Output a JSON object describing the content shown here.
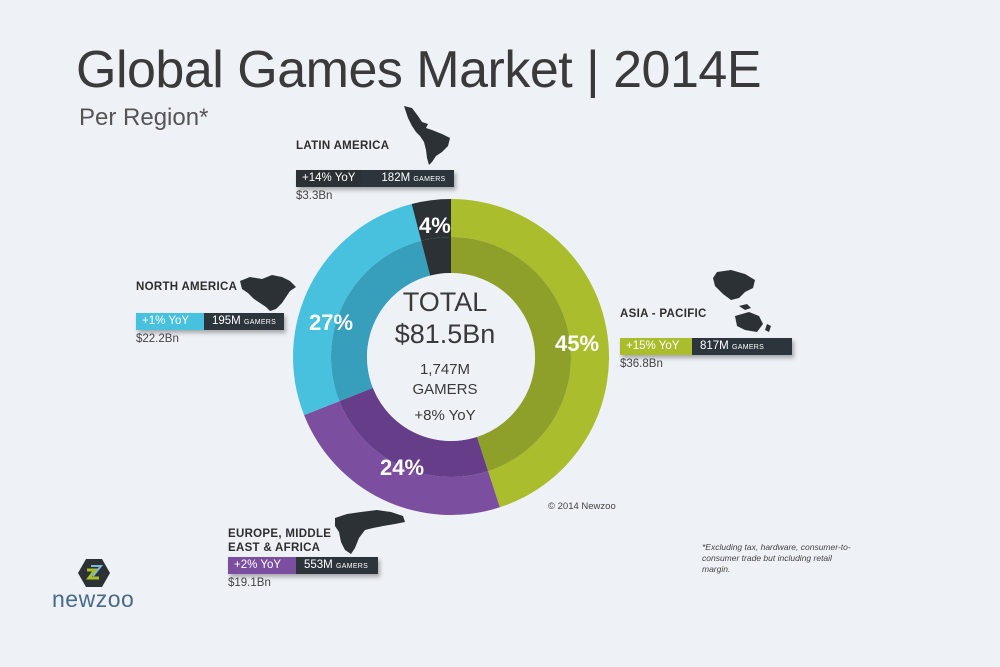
{
  "header": {
    "title": "Global Games Market | 2014E",
    "subtitle": "Per Region*"
  },
  "center": {
    "label": "TOTAL",
    "value": "$81.5Bn",
    "gamers": "1,747M",
    "gamers_word": "GAMERS",
    "yoy": "+8% YoY"
  },
  "chart_data": {
    "type": "pie",
    "title": "Global Games Market | 2014E",
    "subtitle": "Per Region*",
    "total": "$81.5Bn",
    "categories": [
      "Asia - Pacific",
      "Europe, Middle East & Africa",
      "North America",
      "Latin America"
    ],
    "values": [
      45,
      24,
      27,
      4
    ],
    "value_labels": [
      "45%",
      "24%",
      "27%",
      "4%"
    ],
    "colors": [
      "#a9bd2d",
      "#7b4ea0",
      "#48c1de",
      "#2b3135"
    ],
    "inner_colors": [
      "#8fa02a",
      "#653d89",
      "#379fbc",
      "#2b3135"
    ],
    "regions": [
      {
        "name": "ASIA - PACIFIC",
        "yoy": "+15% YoY",
        "gamers": "817M",
        "revenue": "$36.8Bn"
      },
      {
        "name_line1": "EUROPE, MIDDLE",
        "name_line2": "EAST & AFRICA",
        "yoy": "+2% YoY",
        "gamers": "553M",
        "revenue": "$19.1Bn"
      },
      {
        "name": "NORTH AMERICA",
        "yoy": "+1% YoY",
        "gamers": "195M",
        "revenue": "$22.2Bn"
      },
      {
        "name": "LATIN AMERICA",
        "yoy": "+14% YoY",
        "gamers": "182M",
        "revenue": "$3.3Bn"
      }
    ]
  },
  "labels": {
    "gamers_unit": "GAMERS"
  },
  "icons": {
    "asia": "asia-pacific-map-icon",
    "europe": "emea-map-icon",
    "north_america": "north-america-map-icon",
    "latin_america": "latin-america-map-icon",
    "logo": "newzoo-logo-icon"
  },
  "footer": {
    "copyright": "© 2014 Newzoo",
    "footnote": "*Excluding tax, hardware, consumer-to-consumer trade but including retail margin.",
    "brand": "newzoo"
  }
}
